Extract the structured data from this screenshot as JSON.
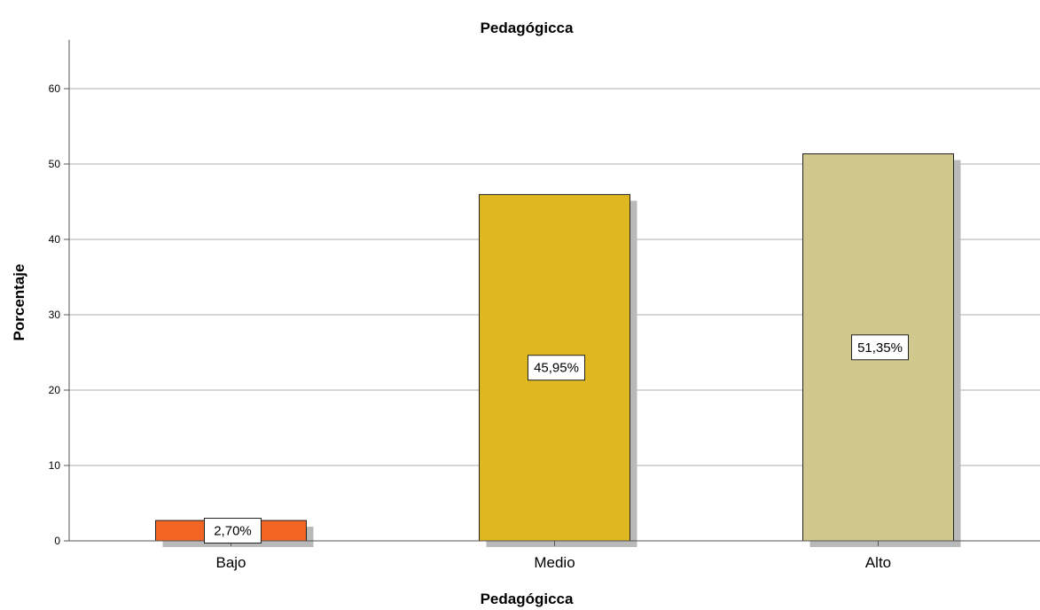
{
  "chart_data": {
    "type": "bar",
    "title": "Pedagógicca",
    "xlabel": "Pedagógicca",
    "ylabel": "Porcentaje",
    "categories": [
      "Bajo",
      "Medio",
      "Alto"
    ],
    "values": [
      2.7,
      45.95,
      51.35
    ],
    "data_labels": [
      "2,70%",
      "45,95%",
      "51,35%"
    ],
    "colors": [
      "#f26522",
      "#dfb81f",
      "#d1c88e"
    ],
    "yticks": [
      "0",
      "10",
      "20",
      "30",
      "40",
      "50",
      "60"
    ],
    "ylim": [
      0,
      66
    ],
    "grid": true,
    "legend": "none"
  }
}
